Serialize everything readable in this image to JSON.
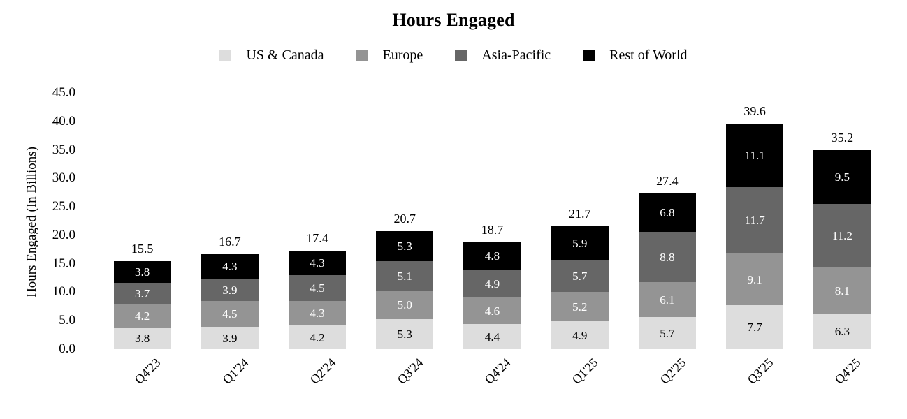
{
  "chart_data": {
    "type": "bar",
    "stacked": true,
    "title": "Hours Engaged",
    "ylabel": "Hours Engaged (In Billions)",
    "xlabel": "",
    "ylim": [
      0,
      45
    ],
    "y_tick_labels": [
      "45.0",
      "40.0",
      "35.0",
      "30.0",
      "25.0",
      "20.0",
      "15.0",
      "10.0",
      "5.0",
      "0.0"
    ],
    "grid": false,
    "legend_position": "top",
    "background_color": "#FFFFFF",
    "categories": [
      "Q4'23",
      "Q1'24",
      "Q2'24",
      "Q3'24",
      "Q4'24",
      "Q1'25",
      "Q2'25",
      "Q3'25",
      "Q4'25"
    ],
    "totals": [
      15.5,
      16.7,
      17.4,
      20.7,
      18.7,
      21.7,
      27.4,
      39.6,
      35.2
    ],
    "series": [
      {
        "name": "US & Canada",
        "color": "#DDDDDD",
        "label_color": "#000000",
        "values": [
          3.8,
          3.9,
          4.2,
          5.3,
          4.4,
          4.9,
          5.7,
          7.7,
          6.3
        ]
      },
      {
        "name": "Europe",
        "color": "#949494",
        "label_color": "#FFFFFF",
        "values": [
          4.2,
          4.5,
          4.3,
          5.0,
          4.6,
          5.2,
          6.1,
          9.1,
          8.1
        ]
      },
      {
        "name": "Asia-Pacific",
        "color": "#666666",
        "label_color": "#FFFFFF",
        "values": [
          3.7,
          3.9,
          4.5,
          5.1,
          4.9,
          5.7,
          8.8,
          11.7,
          11.2
        ]
      },
      {
        "name": "Rest of World",
        "color": "#000000",
        "label_color": "#FFFFFF",
        "values": [
          3.8,
          4.3,
          4.3,
          5.3,
          4.8,
          5.9,
          6.8,
          11.1,
          9.5
        ]
      }
    ]
  }
}
